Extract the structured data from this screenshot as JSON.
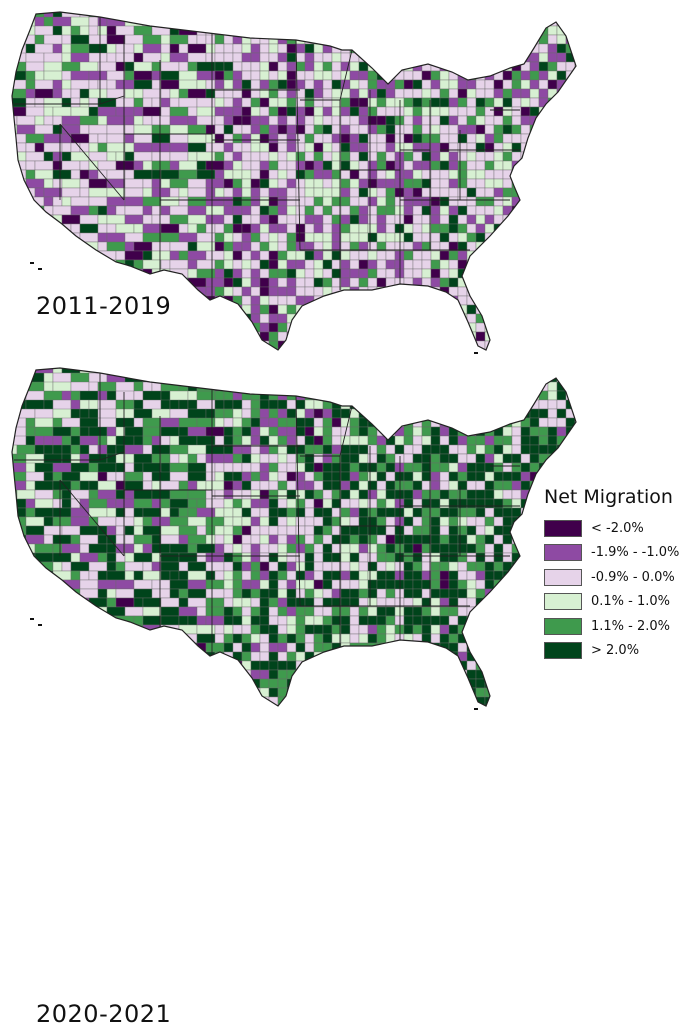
{
  "maps": [
    {
      "period": "2011-2019",
      "shift": 0,
      "grid_seed": 7,
      "weights": [
        0.05,
        0.17,
        0.36,
        0.18,
        0.14,
        0.1
      ]
    },
    {
      "period": "2020-2021",
      "shift": 356,
      "grid_seed": 31,
      "weights": [
        0.02,
        0.1,
        0.2,
        0.14,
        0.2,
        0.34
      ]
    }
  ],
  "legend": {
    "title": "Net Migration",
    "items": [
      {
        "label": "< -2.0%",
        "color": "#40004b"
      },
      {
        "label": "-1.9% - -1.0%",
        "color": "#8e4aa3"
      },
      {
        "label": "-0.9% - 0.0%",
        "color": "#e6d3e9"
      },
      {
        "label": "0.1% - 1.0%",
        "color": "#d7f0d2"
      },
      {
        "label": "1.1% - 2.0%",
        "color": "#3f9a4d"
      },
      {
        "label": "> 2.0%",
        "color": "#00441b"
      }
    ]
  },
  "colors": {
    "county_border": "#6a6a6a",
    "state_border": "#222222"
  }
}
